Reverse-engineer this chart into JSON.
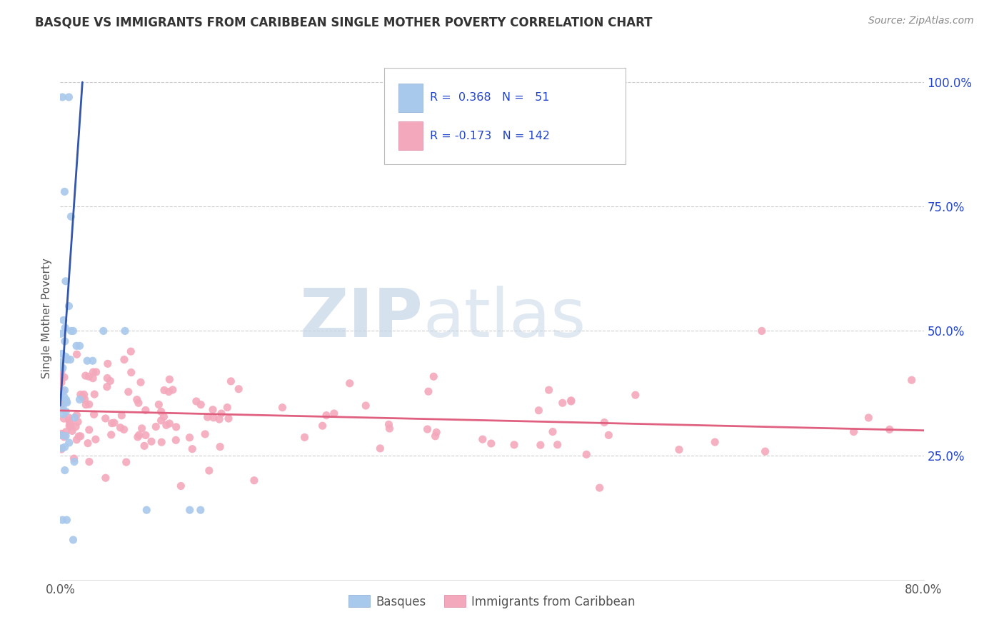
{
  "title": "BASQUE VS IMMIGRANTS FROM CARIBBEAN SINGLE MOTHER POVERTY CORRELATION CHART",
  "source": "Source: ZipAtlas.com",
  "ylabel": "Single Mother Poverty",
  "color_blue": "#A8C8EC",
  "color_pink": "#F4A8BC",
  "color_blue_line": "#3355AA",
  "color_pink_line": "#E06080",
  "color_legend_text": "#2244CC",
  "watermark_zip": "ZIP",
  "watermark_atlas": "atlas",
  "xlim": [
    0.0,
    0.8
  ],
  "ylim": [
    0.0,
    1.05
  ],
  "ytick_vals": [
    0.25,
    0.5,
    0.75,
    1.0
  ],
  "ytick_labels": [
    "25.0%",
    "50.0%",
    "75.0%",
    "100.0%"
  ],
  "xtick_vals": [
    0.0,
    0.8
  ],
  "xtick_labels": [
    "0.0%",
    "80.0%"
  ]
}
